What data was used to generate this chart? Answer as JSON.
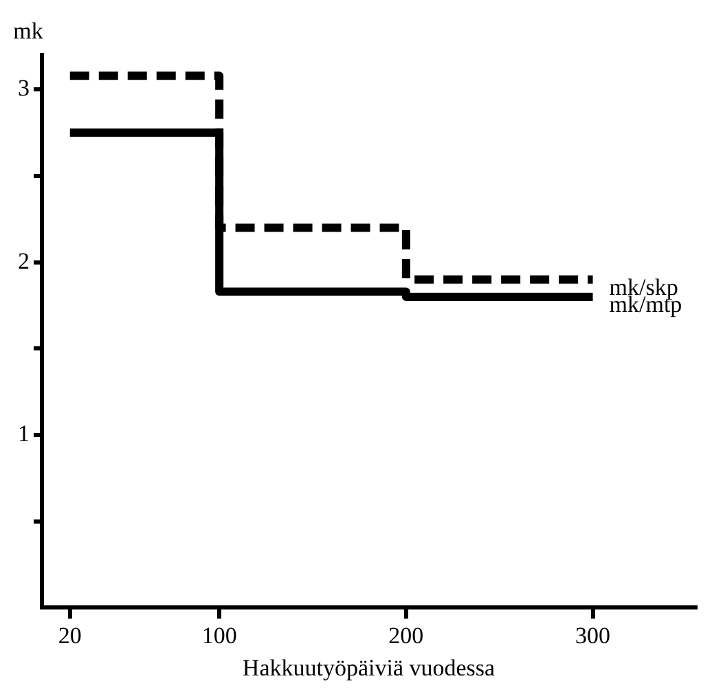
{
  "chart_data": {
    "type": "step",
    "xlabel": "Hakkuutyöpäiviä vuodessa",
    "ylabel": "mk",
    "series": [
      {
        "name": "mk/skp",
        "color": "#000000",
        "line_style": "dashed",
        "x": [
          20,
          100,
          200,
          300
        ],
        "values": [
          3.08,
          2.2,
          1.9,
          1.9
        ]
      },
      {
        "name": "mk/mtp",
        "color": "#000000",
        "line_style": "solid",
        "x": [
          20,
          100,
          200,
          300
        ],
        "values": [
          2.75,
          1.83,
          1.8,
          1.8
        ]
      }
    ],
    "xlim": [
      5,
      355
    ],
    "xticks": [
      20,
      100,
      200,
      300
    ],
    "ylim": [
      0,
      3.2
    ],
    "yticks": [
      {
        "value": 0.5,
        "label": null
      },
      1,
      {
        "value": 1.5,
        "label": null
      },
      2,
      {
        "value": 2.5,
        "label": null
      },
      3
    ],
    "grid": false,
    "legend": false,
    "marker": "none"
  }
}
